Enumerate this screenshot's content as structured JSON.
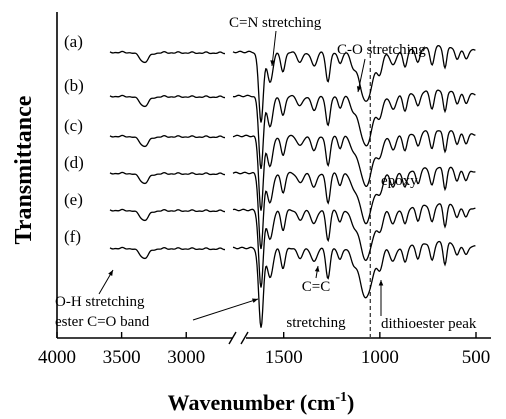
{
  "chart_data": {
    "type": "line",
    "ylabel": "Transmittance",
    "xlabel": "Wavenumber (cm",
    "xlabel_superscript": "-1",
    "xlabel_suffix": ")",
    "x_axis": {
      "reversed": true,
      "broken": true,
      "left_segment_range": [
        4000,
        2700
      ],
      "right_segment_range": [
        1800,
        500
      ],
      "ticks": [
        4000,
        3500,
        3000,
        1500,
        1000,
        500
      ],
      "tick_labels": [
        "4000",
        "3500",
        "3000",
        "1500",
        "1000",
        "500"
      ]
    },
    "grid": false,
    "series": [
      {
        "name": "(a)",
        "label": "(a)"
      },
      {
        "name": "(b)",
        "label": "(b)"
      },
      {
        "name": "(c)",
        "label": "(c)"
      },
      {
        "name": "(d)",
        "label": "(d)"
      },
      {
        "name": "(e)",
        "label": "(e)"
      },
      {
        "name": "(f)",
        "label": "(f)"
      }
    ],
    "reference_line": {
      "x": 1050,
      "style": "dashed"
    },
    "annotations": [
      {
        "text": "C=N stretching",
        "x": 1640
      },
      {
        "text": "C-O stretching",
        "x": 1190
      },
      {
        "text": "epoxy",
        "x": 1050
      },
      {
        "text": "O-H stretching",
        "x": 3450
      },
      {
        "text": "ester C=O band",
        "x": 1728
      },
      {
        "text": "C=C",
        "x": 1455
      },
      {
        "text": "stretching",
        "x": 1455
      },
      {
        "text": "dithioester peak",
        "x": 1050
      }
    ]
  }
}
